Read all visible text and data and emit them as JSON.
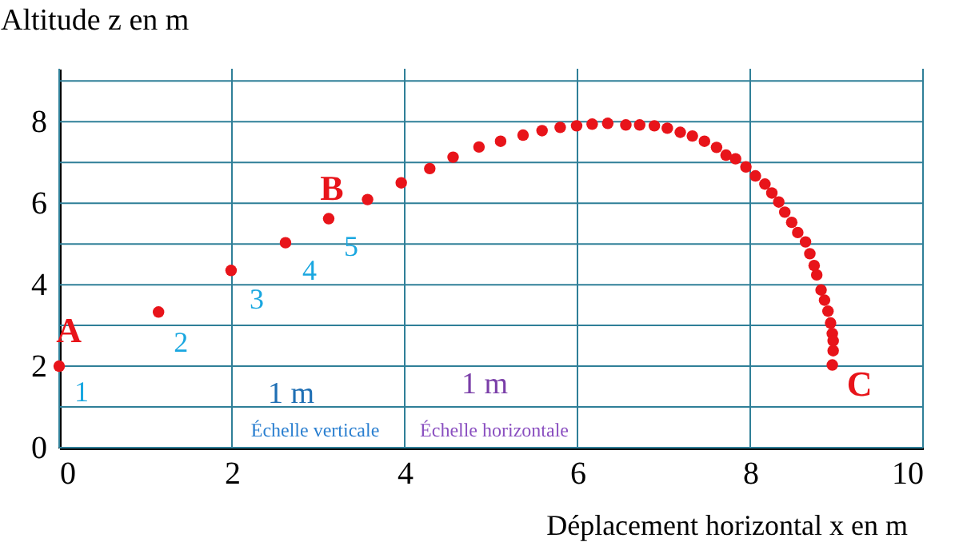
{
  "chart_data": {
    "type": "scatter",
    "xlabel": "Déplacement horizontal x en m",
    "ylabel": "Altitude z en m",
    "x": [
      0,
      1.15,
      1.99,
      2.62,
      3.12,
      3.57,
      3.96,
      4.29,
      4.56,
      4.86,
      5.11,
      5.37,
      5.59,
      5.8,
      5.99,
      6.17,
      6.35,
      6.56,
      6.72,
      6.89,
      7.04,
      7.19,
      7.33,
      7.47,
      7.61,
      7.72,
      7.83,
      7.95,
      8.06,
      8.17,
      8.25,
      8.33,
      8.4,
      8.48,
      8.55,
      8.64,
      8.69,
      8.74,
      8.77,
      8.82,
      8.86,
      8.9,
      8.93,
      8.95,
      8.96,
      8.96,
      8.95
    ],
    "series": [
      {
        "color": "#e8141a",
        "values": [
          2,
          3.33,
          4.35,
          5.03,
          5.62,
          6.09,
          6.5,
          6.85,
          7.13,
          7.38,
          7.52,
          7.67,
          7.78,
          7.86,
          7.9,
          7.94,
          7.96,
          7.92,
          7.92,
          7.9,
          7.84,
          7.74,
          7.65,
          7.52,
          7.37,
          7.18,
          7.09,
          6.89,
          6.67,
          6.47,
          6.25,
          6.03,
          5.78,
          5.53,
          5.28,
          5.05,
          4.76,
          4.47,
          4.24,
          3.87,
          3.62,
          3.35,
          3.06,
          2.8,
          2.62,
          2.38,
          2.03
        ]
      }
    ],
    "marker": "circle",
    "xlim": [
      0,
      10
    ],
    "xticks": [
      0,
      2,
      4,
      6,
      8,
      10
    ],
    "ylim": [
      0,
      9.3
    ],
    "yticks": [
      0,
      {
        "value": 1,
        "label": null
      },
      2,
      {
        "value": 3,
        "label": null
      },
      4,
      {
        "value": 5,
        "label": null
      },
      6,
      {
        "value": 7,
        "label": null
      },
      8,
      {
        "value": 9,
        "label": null
      }
    ],
    "grid": true,
    "annotations": [
      {
        "text": "A",
        "x": 0,
        "y": 2
      },
      {
        "text": "B",
        "x": 3.12,
        "y": 5.62
      },
      {
        "text": "C",
        "x": 8.95,
        "y": 2.03
      },
      {
        "text": "1",
        "x": 0,
        "y": 2
      },
      {
        "text": "2",
        "x": 1.15,
        "y": 3.33
      },
      {
        "text": "3",
        "x": 1.99,
        "y": 4.35
      },
      {
        "text": "4",
        "x": 2.62,
        "y": 5.03
      },
      {
        "text": "5",
        "x": 3.12,
        "y": 5.62
      },
      "1 m",
      "1 m",
      "Échelle verticale",
      "Échelle horizontale"
    ]
  }
}
